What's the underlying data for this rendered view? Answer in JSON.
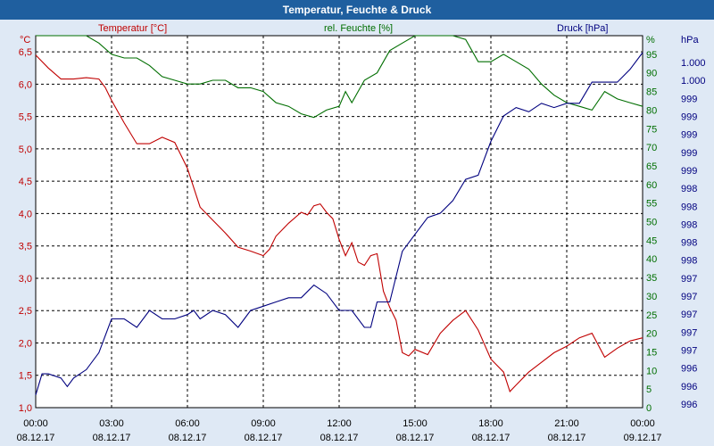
{
  "window": {
    "title": "Temperatur, Feuchte & Druck",
    "bg_color": "#dfe9f5",
    "title_bg": "#1f5f9f"
  },
  "chart_data": {
    "type": "line",
    "title": "Temperatur, Feuchte & Druck",
    "grid": true,
    "legend_placement": "top",
    "x_ticks": [
      {
        "time": "00:00",
        "date": "08.12.17"
      },
      {
        "time": "03:00",
        "date": "08.12.17"
      },
      {
        "time": "06:00",
        "date": "08.12.17"
      },
      {
        "time": "09:00",
        "date": "08.12.17"
      },
      {
        "time": "12:00",
        "date": "08.12.17"
      },
      {
        "time": "15:00",
        "date": "08.12.17"
      },
      {
        "time": "18:00",
        "date": "08.12.17"
      },
      {
        "time": "21:00",
        "date": "08.12.17"
      },
      {
        "time": "00:00",
        "date": "09.12.17"
      }
    ],
    "xlim": [
      0,
      24
    ],
    "axes": {
      "temperature": {
        "label": "Temperatur [°C]",
        "unit": "°C",
        "color": "#c00000",
        "range": [
          1.0,
          6.75
        ],
        "ticks": [
          "1,0",
          "1,5",
          "2,0",
          "2,5",
          "3,0",
          "3,5",
          "4,0",
          "4,5",
          "5,0",
          "5,5",
          "6,0",
          "6,5"
        ]
      },
      "humidity": {
        "label": "rel. Feuchte [%]",
        "unit": "%",
        "color": "#006e00",
        "range": [
          0,
          100
        ],
        "ticks": [
          "0",
          "5",
          "10",
          "15",
          "20",
          "25",
          "30",
          "35",
          "40",
          "45",
          "50",
          "55",
          "60",
          "65",
          "70",
          "75",
          "80",
          "85",
          "90",
          "95"
        ]
      },
      "pressure": {
        "label": "Druck [hPa]",
        "unit": "hPa",
        "color": "#00007f",
        "range": [
          995.9,
          1000.3
        ],
        "ticks": [
          "996",
          "996",
          "996",
          "997",
          "997",
          "997",
          "997",
          "997",
          "998",
          "998",
          "998",
          "998",
          "998",
          "999",
          "999",
          "999",
          "999",
          "999",
          "1.000",
          "1.000"
        ]
      }
    },
    "series": [
      {
        "name": "Temperatur [°C]",
        "axis": "temperature",
        "color": "#c00000",
        "points": [
          [
            0,
            6.45
          ],
          [
            0.5,
            6.25
          ],
          [
            1,
            6.08
          ],
          [
            1.5,
            6.08
          ],
          [
            2,
            6.1
          ],
          [
            2.5,
            6.08
          ],
          [
            2.75,
            5.95
          ],
          [
            3,
            5.75
          ],
          [
            3.5,
            5.4
          ],
          [
            4,
            5.08
          ],
          [
            4.5,
            5.08
          ],
          [
            5,
            5.18
          ],
          [
            5.5,
            5.1
          ],
          [
            6,
            4.7
          ],
          [
            6.5,
            4.1
          ],
          [
            7,
            3.9
          ],
          [
            7.5,
            3.7
          ],
          [
            8,
            3.48
          ],
          [
            8.5,
            3.42
          ],
          [
            9,
            3.35
          ],
          [
            9.25,
            3.45
          ],
          [
            9.5,
            3.65
          ],
          [
            10,
            3.85
          ],
          [
            10.5,
            4.02
          ],
          [
            10.75,
            3.98
          ],
          [
            11,
            4.12
          ],
          [
            11.25,
            4.15
          ],
          [
            11.5,
            4.02
          ],
          [
            11.75,
            3.92
          ],
          [
            12,
            3.6
          ],
          [
            12.25,
            3.35
          ],
          [
            12.5,
            3.55
          ],
          [
            12.75,
            3.25
          ],
          [
            13,
            3.2
          ],
          [
            13.25,
            3.35
          ],
          [
            13.5,
            3.38
          ],
          [
            13.75,
            2.8
          ],
          [
            14,
            2.55
          ],
          [
            14.25,
            2.35
          ],
          [
            14.5,
            1.85
          ],
          [
            14.75,
            1.8
          ],
          [
            15,
            1.9
          ],
          [
            15.5,
            1.82
          ],
          [
            16,
            2.15
          ],
          [
            16.5,
            2.35
          ],
          [
            17,
            2.5
          ],
          [
            17.5,
            2.2
          ],
          [
            18,
            1.75
          ],
          [
            18.5,
            1.55
          ],
          [
            18.75,
            1.25
          ],
          [
            19,
            1.35
          ],
          [
            19.5,
            1.55
          ],
          [
            20,
            1.7
          ],
          [
            20.5,
            1.85
          ],
          [
            21,
            1.95
          ],
          [
            21.5,
            2.08
          ],
          [
            22,
            2.15
          ],
          [
            22.5,
            1.78
          ],
          [
            23,
            1.92
          ],
          [
            23.5,
            2.03
          ],
          [
            24,
            2.08
          ]
        ]
      },
      {
        "name": "rel. Feuchte [%]",
        "axis": "humidity",
        "color": "#006e00",
        "points": [
          [
            0,
            100
          ],
          [
            1,
            100
          ],
          [
            2,
            100
          ],
          [
            2.5,
            98
          ],
          [
            3,
            95
          ],
          [
            3.5,
            94
          ],
          [
            4,
            94
          ],
          [
            4.5,
            92
          ],
          [
            5,
            89
          ],
          [
            5.5,
            88
          ],
          [
            6,
            87
          ],
          [
            6.5,
            87
          ],
          [
            7,
            88
          ],
          [
            7.5,
            88
          ],
          [
            8,
            86
          ],
          [
            8.5,
            86
          ],
          [
            9,
            85
          ],
          [
            9.5,
            82
          ],
          [
            10,
            81
          ],
          [
            10.5,
            79
          ],
          [
            11,
            78
          ],
          [
            11.5,
            80
          ],
          [
            12,
            81
          ],
          [
            12.25,
            85
          ],
          [
            12.5,
            82
          ],
          [
            13,
            88
          ],
          [
            13.5,
            90
          ],
          [
            14,
            96
          ],
          [
            14.5,
            98
          ],
          [
            15,
            100
          ],
          [
            15.5,
            100
          ],
          [
            16,
            100
          ],
          [
            16.5,
            100
          ],
          [
            17,
            99
          ],
          [
            17.5,
            93
          ],
          [
            18,
            93
          ],
          [
            18.5,
            95
          ],
          [
            19,
            93
          ],
          [
            19.5,
            91
          ],
          [
            20,
            87
          ],
          [
            20.5,
            84
          ],
          [
            21,
            82
          ],
          [
            21.5,
            81
          ],
          [
            22,
            80
          ],
          [
            22.5,
            85
          ],
          [
            23,
            83
          ],
          [
            23.5,
            82
          ],
          [
            24,
            81
          ]
        ]
      },
      {
        "name": "Druck [hPa]",
        "axis": "pressure",
        "color": "#00007f",
        "points": [
          [
            0,
            996.05
          ],
          [
            0.25,
            996.3
          ],
          [
            0.5,
            996.3
          ],
          [
            1,
            996.25
          ],
          [
            1.25,
            996.15
          ],
          [
            1.5,
            996.25
          ],
          [
            2,
            996.35
          ],
          [
            2.5,
            996.55
          ],
          [
            3,
            996.95
          ],
          [
            3.5,
            996.95
          ],
          [
            4,
            996.85
          ],
          [
            4.5,
            997.05
          ],
          [
            5,
            996.95
          ],
          [
            5.5,
            996.95
          ],
          [
            6,
            997.0
          ],
          [
            6.25,
            997.05
          ],
          [
            6.5,
            996.95
          ],
          [
            7,
            997.05
          ],
          [
            7.5,
            997.0
          ],
          [
            8,
            996.85
          ],
          [
            8.5,
            997.05
          ],
          [
            9,
            997.1
          ],
          [
            9.5,
            997.15
          ],
          [
            10,
            997.2
          ],
          [
            10.5,
            997.2
          ],
          [
            11,
            997.35
          ],
          [
            11.5,
            997.25
          ],
          [
            12,
            997.05
          ],
          [
            12.5,
            997.05
          ],
          [
            13,
            996.85
          ],
          [
            13.25,
            996.85
          ],
          [
            13.5,
            997.15
          ],
          [
            14,
            997.15
          ],
          [
            14.5,
            997.75
          ],
          [
            15,
            997.95
          ],
          [
            15.5,
            998.15
          ],
          [
            16,
            998.2
          ],
          [
            16.5,
            998.35
          ],
          [
            17,
            998.6
          ],
          [
            17.5,
            998.65
          ],
          [
            18,
            999.05
          ],
          [
            18.25,
            999.2
          ],
          [
            18.5,
            999.35
          ],
          [
            19,
            999.45
          ],
          [
            19.5,
            999.4
          ],
          [
            20,
            999.5
          ],
          [
            20.5,
            999.45
          ],
          [
            21,
            999.5
          ],
          [
            21.5,
            999.5
          ],
          [
            22,
            999.75
          ],
          [
            22.5,
            999.75
          ],
          [
            23,
            999.75
          ],
          [
            23.5,
            999.9
          ],
          [
            24,
            1000.1
          ]
        ]
      }
    ]
  }
}
